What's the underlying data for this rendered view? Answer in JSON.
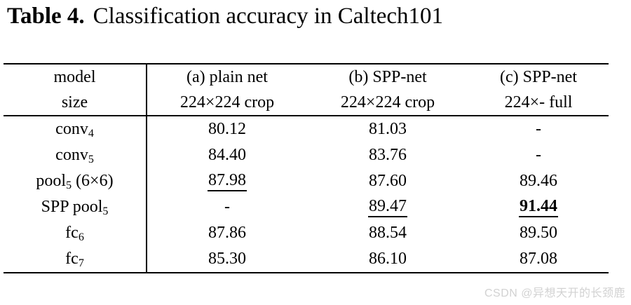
{
  "title": {
    "label": "Table 4.",
    "text": "Classification accuracy in Caltech101"
  },
  "table": {
    "header": {
      "model": {
        "line1": "model",
        "line2": "size"
      },
      "col_a": {
        "line1": "(a) plain net",
        "line2": "224×224 crop"
      },
      "col_b": {
        "line1": "(b) SPP-net",
        "line2": "224×224 crop"
      },
      "col_c": {
        "line1": "(c) SPP-net",
        "line2": "224×- full"
      }
    },
    "rows": [
      {
        "model_base": "conv",
        "model_sub": "4",
        "model_suffix": "",
        "a": "80.12",
        "b": "81.03",
        "c": "-",
        "a_style": "normal",
        "b_style": "normal",
        "c_style": "normal"
      },
      {
        "model_base": "conv",
        "model_sub": "5",
        "model_suffix": "",
        "a": "84.40",
        "b": "83.76",
        "c": "-",
        "a_style": "normal",
        "b_style": "normal",
        "c_style": "normal"
      },
      {
        "model_base": "pool",
        "model_sub": "5",
        "model_suffix": " (6×6)",
        "a": "87.98",
        "b": "87.60",
        "c": "89.46",
        "a_style": "underline",
        "b_style": "normal",
        "c_style": "normal"
      },
      {
        "model_base": "SPP pool",
        "model_sub": "5",
        "model_suffix": "",
        "a": "-",
        "b": "89.47",
        "c": "91.44",
        "a_style": "normal",
        "b_style": "underline",
        "c_style": "bold-underline"
      },
      {
        "model_base": "fc",
        "model_sub": "6",
        "model_suffix": "",
        "a": "87.86",
        "b": "88.54",
        "c": "89.50",
        "a_style": "normal",
        "b_style": "normal",
        "c_style": "normal"
      },
      {
        "model_base": "fc",
        "model_sub": "7",
        "model_suffix": "",
        "a": "85.30",
        "b": "86.10",
        "c": "87.08",
        "a_style": "normal",
        "b_style": "normal",
        "c_style": "normal"
      }
    ]
  },
  "watermark": {
    "text": "CSDN @异想天开的长颈鹿"
  },
  "colors": {
    "text": "#000000",
    "background": "#ffffff",
    "rule": "#000000",
    "watermark": "#d2d2d2"
  }
}
